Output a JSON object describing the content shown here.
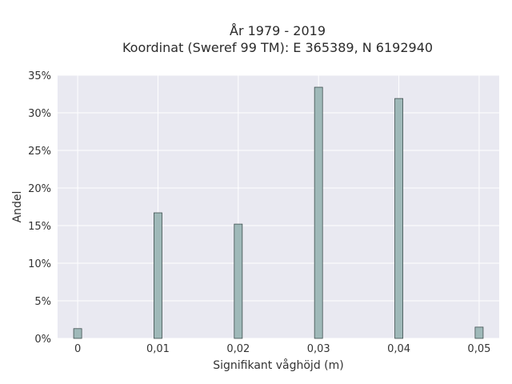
{
  "chart_data": {
    "type": "bar",
    "title_lines": [
      "År 1979 - 2019",
      "Koordinat (Sweref 99 TM): E 365389, N 6192940"
    ],
    "xlabel": "Signifikant våghöjd (m)",
    "ylabel": "Andel",
    "x": [
      0,
      0.01,
      0.02,
      0.03,
      0.04,
      0.05
    ],
    "values": [
      1.3,
      16.7,
      15.2,
      33.4,
      31.9,
      1.5
    ],
    "bar_width": 0.001,
    "xlim": [
      -0.0025,
      0.0525
    ],
    "ylim": [
      0,
      35
    ],
    "xticks": [
      {
        "value": 0,
        "label": "0"
      },
      {
        "value": 0.01,
        "label": "0,01"
      },
      {
        "value": 0.02,
        "label": "0,02"
      },
      {
        "value": 0.03,
        "label": "0,03"
      },
      {
        "value": 0.04,
        "label": "0,04"
      },
      {
        "value": 0.05,
        "label": "0,05"
      }
    ],
    "yticks": [
      {
        "value": 0,
        "label": "0%"
      },
      {
        "value": 5,
        "label": "5%"
      },
      {
        "value": 10,
        "label": "10%"
      },
      {
        "value": 15,
        "label": "15%"
      },
      {
        "value": 20,
        "label": "20%"
      },
      {
        "value": 25,
        "label": "25%"
      },
      {
        "value": 30,
        "label": "30%"
      },
      {
        "value": 35,
        "label": "35%"
      }
    ],
    "grid": true,
    "colors": {
      "plot_bg": "#e9e9f1",
      "grid": "#ffffff",
      "bar_fill": "#9fb9b9",
      "bar_edge": "#3f4f4f"
    }
  }
}
